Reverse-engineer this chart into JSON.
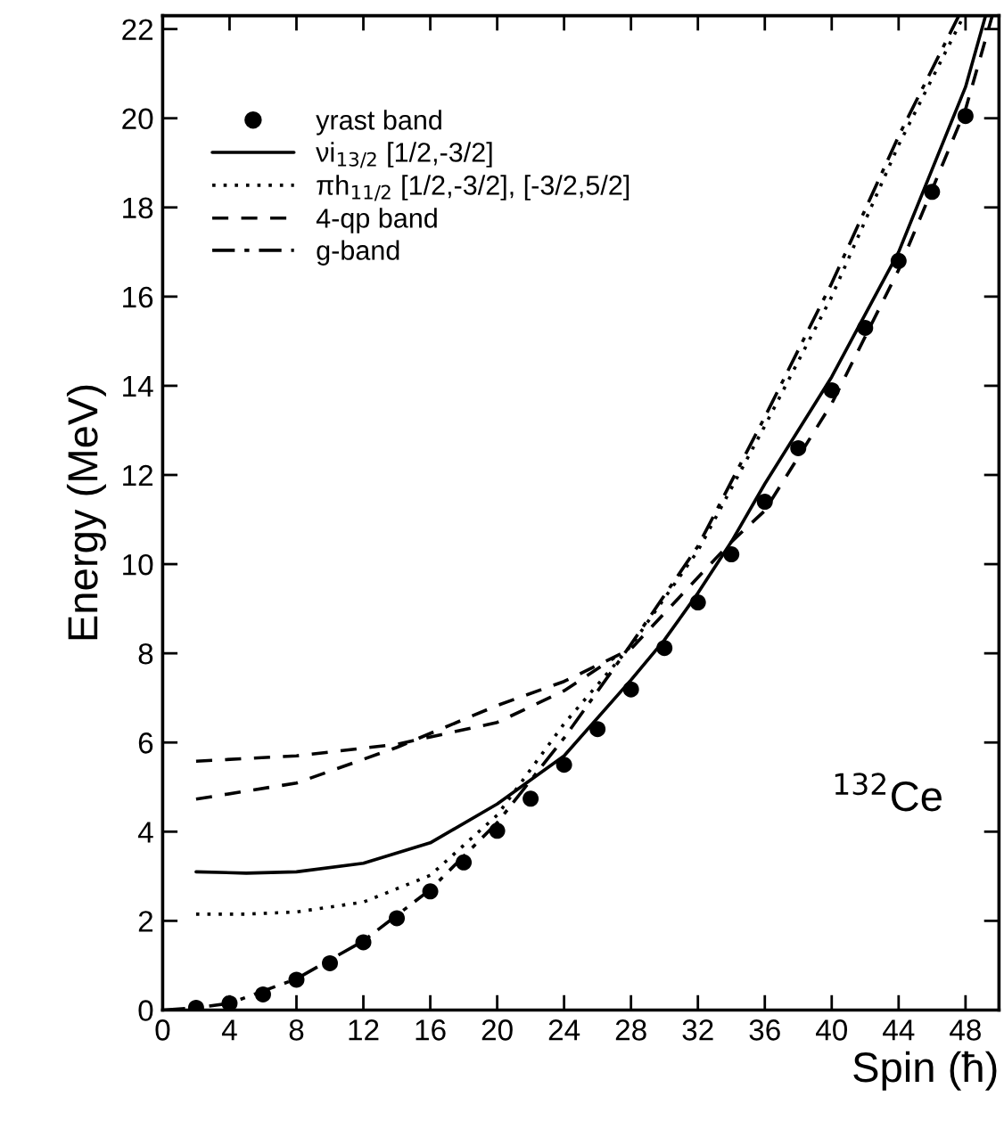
{
  "chart_data": {
    "type": "line",
    "xlabel": "Spin (ħ)",
    "ylabel": "Energy (MeV)",
    "xlim": [
      0,
      50
    ],
    "ylim": [
      0,
      22.3
    ],
    "xticks": [
      0,
      4,
      8,
      12,
      16,
      20,
      24,
      28,
      32,
      36,
      40,
      44,
      48
    ],
    "yticks": [
      0,
      2,
      4,
      6,
      8,
      10,
      12,
      14,
      16,
      18,
      20,
      22
    ],
    "grid": false,
    "legend": "top left",
    "annotations": [
      "$^{132}$Ce"
    ],
    "series": [
      {
        "name": "yrast band",
        "type": "scatter",
        "marker": "circle",
        "color": "#000000",
        "x": [
          2,
          4,
          6,
          8,
          10,
          12,
          14,
          16,
          18,
          20,
          22,
          24,
          26,
          28,
          30,
          32,
          34,
          36,
          38,
          40,
          42,
          44,
          46,
          48
        ],
        "values": [
          0.05,
          0.15,
          0.35,
          0.68,
          1.05,
          1.52,
          2.06,
          2.66,
          3.31,
          4.02,
          4.74,
          5.5,
          6.3,
          7.19,
          8.12,
          9.14,
          10.22,
          11.4,
          12.6,
          13.9,
          15.3,
          16.8,
          18.35,
          20.05
        ]
      },
      {
        "name": "νi$_{13/2}$ [1/2,-3/2]",
        "line_style": "solid",
        "color": "#000000",
        "x": [
          2,
          5,
          8,
          12,
          16,
          20,
          24,
          28,
          30,
          32,
          34,
          36,
          40,
          44,
          48,
          49.2
        ],
        "values": [
          3.1,
          3.07,
          3.1,
          3.29,
          3.75,
          4.62,
          5.7,
          7.4,
          8.3,
          9.35,
          10.5,
          11.8,
          14.2,
          17.0,
          20.7,
          22.3
        ]
      },
      {
        "name": "πh$_{11/2}$ [1/2,-3/2], [-3/2,5/2]",
        "line_style": "dotted",
        "color": "#000000",
        "x": [
          2,
          5,
          8,
          12,
          16,
          20,
          24,
          28,
          32,
          36,
          40,
          44,
          47.9
        ],
        "values": [
          2.15,
          2.15,
          2.2,
          2.42,
          3.02,
          4.37,
          6.42,
          8.17,
          10.3,
          13.1,
          16.0,
          19.4,
          22.3
        ]
      },
      {
        "name": "4-qp band",
        "line_style": "dashed",
        "color": "#000000",
        "x": [
          2,
          8,
          14,
          20,
          24,
          28,
          30,
          32,
          34,
          36,
          40,
          44,
          48,
          49.6
        ],
        "values": [
          4.73,
          5.09,
          5.89,
          6.83,
          7.37,
          8.1,
          8.9,
          9.7,
          10.5,
          11.2,
          13.6,
          16.6,
          20.2,
          22.3
        ]
      },
      {
        "line_style": "dashed",
        "color": "#000000",
        "x": [
          2,
          8,
          14,
          20,
          24,
          27
        ],
        "values": [
          5.58,
          5.7,
          5.96,
          6.45,
          7.16,
          7.9
        ]
      },
      {
        "name": "g-band",
        "line_style": "dashdot",
        "color": "#000000",
        "x": [
          0,
          2,
          4,
          8,
          12,
          16,
          20,
          24,
          28,
          32,
          36,
          40,
          44,
          47.6
        ],
        "values": [
          0,
          0.05,
          0.15,
          0.7,
          1.55,
          2.7,
          4.2,
          6.1,
          8.2,
          10.4,
          13.3,
          16.3,
          19.6,
          22.3
        ]
      }
    ]
  }
}
